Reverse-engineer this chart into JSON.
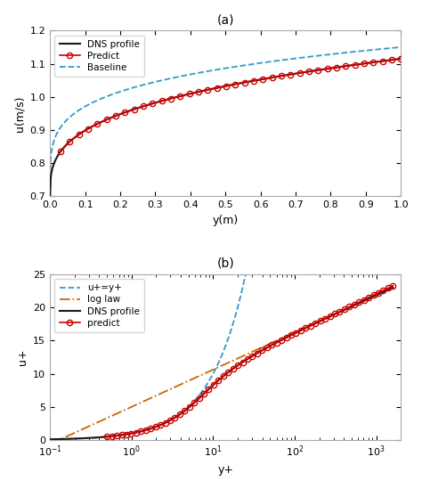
{
  "title_a": "(a)",
  "title_b": "(b)",
  "subplot_a": {
    "xlabel": "y(m)",
    "ylabel": "u(m/s)",
    "xlim": [
      0,
      1
    ],
    "ylim": [
      0.7,
      1.2
    ],
    "yticks": [
      0.7,
      0.8,
      0.9,
      1.0,
      1.1,
      1.2
    ],
    "xticks": [
      0,
      0.1,
      0.2,
      0.3,
      0.4,
      0.5,
      0.6,
      0.7,
      0.8,
      0.9,
      1.0
    ],
    "dns_color": "#1a1a1a",
    "predict_color": "#cc0000",
    "baseline_color": "#3399cc"
  },
  "subplot_b": {
    "xlabel": "y+",
    "ylabel": "u+",
    "xlim": [
      0.1,
      2000
    ],
    "ylim": [
      0,
      25
    ],
    "yticks": [
      0,
      5,
      10,
      15,
      20,
      25
    ],
    "dns_color": "#1a1a1a",
    "uplus_color": "#3399cc",
    "loglaw_color": "#cc6600",
    "predict_color": "#cc0000"
  }
}
